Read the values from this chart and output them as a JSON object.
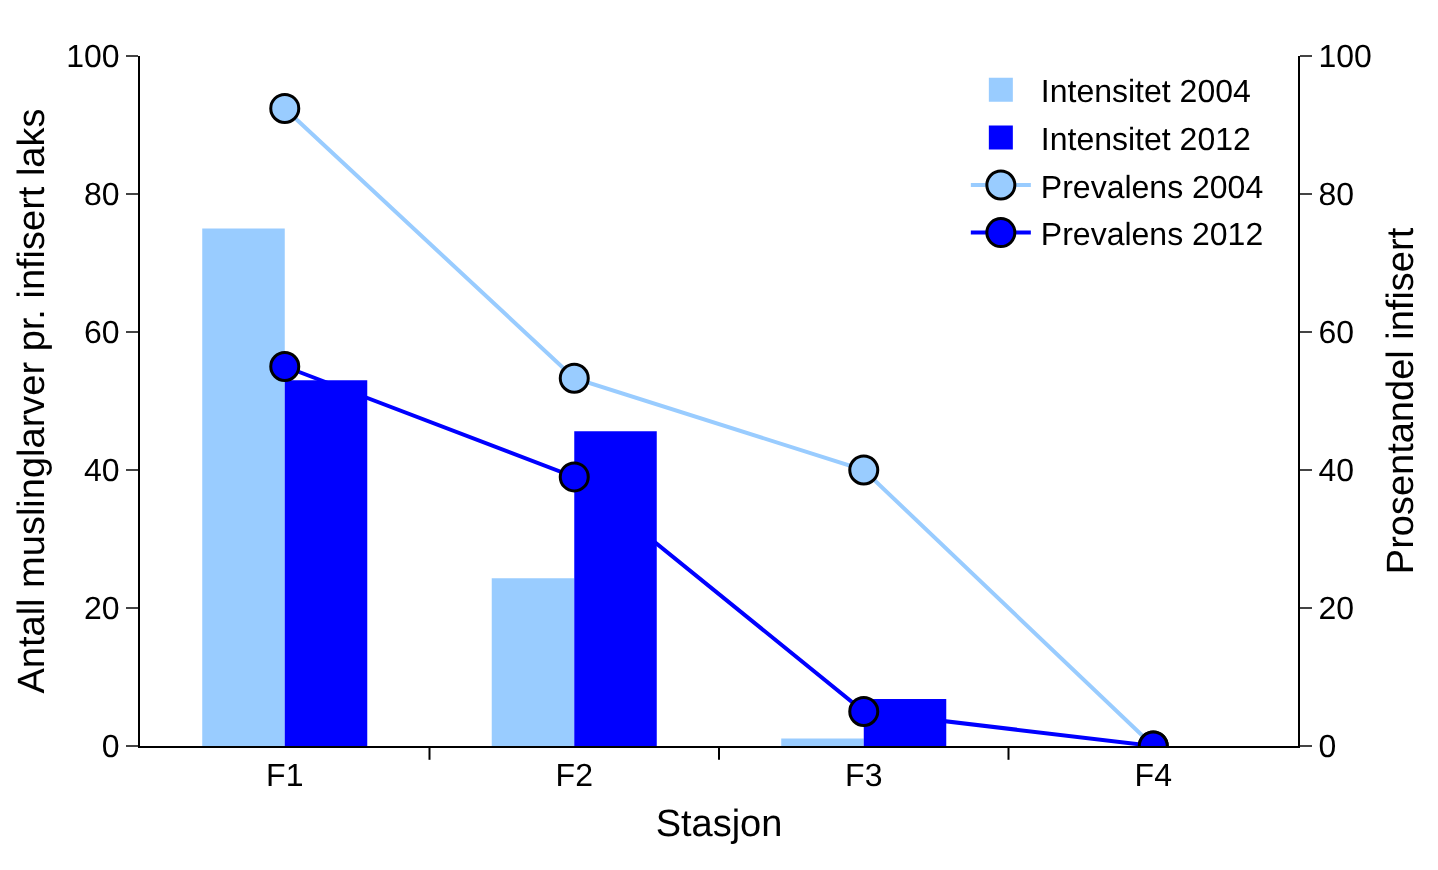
{
  "chart_data": {
    "type": "bar",
    "xlabel": "Stasjon",
    "ylabel": "Antall muslinglarver pr. infisert laks",
    "y2label": "Prosentandel infisert",
    "categories": [
      "F1",
      "F2",
      "F3",
      "F4"
    ],
    "series": [
      {
        "name": "Intensitet 2004",
        "color": "#99ccff",
        "values": [
          75,
          24.3,
          1.1,
          0
        ]
      },
      {
        "name": "Intensitet 2012",
        "color": "#0000ff",
        "values": [
          53,
          45.6,
          6.8,
          0
        ]
      },
      {
        "name": "Prevalens 2004",
        "type": "line",
        "axis": "y2",
        "color": "#99ccff",
        "values": [
          92.4,
          53.3,
          40,
          0
        ]
      },
      {
        "name": "Prevalens 2012",
        "type": "line",
        "axis": "y2",
        "color": "#0000ff",
        "values": [
          55,
          39,
          5,
          0
        ]
      }
    ],
    "ylim": [
      0,
      100
    ],
    "yticks": [
      0,
      20,
      40,
      60,
      80,
      100
    ],
    "y2lim": [
      0,
      100
    ],
    "y2ticks": [
      0,
      20,
      40,
      60,
      80,
      100
    ],
    "grid": false,
    "legend": "top right",
    "marker": "circle"
  }
}
